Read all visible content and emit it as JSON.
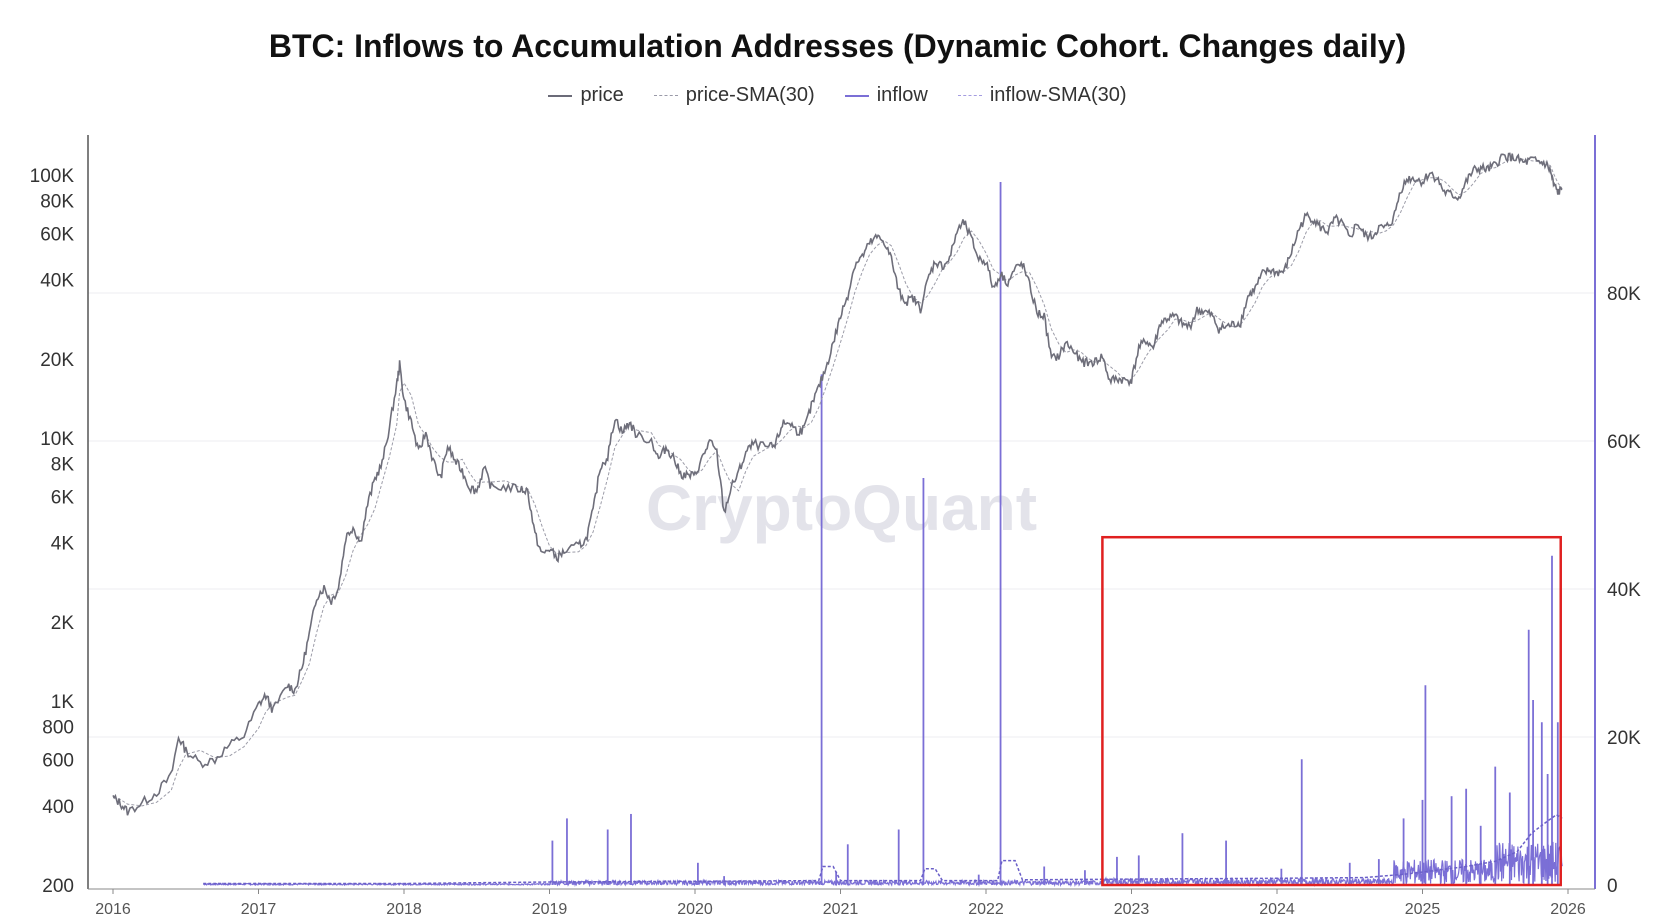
{
  "title": "BTC: Inflows to Accumulation Addresses (Dynamic Cohort. Changes daily)",
  "watermark": "CryptoQuant",
  "legend": [
    {
      "label": "price",
      "color": "#6b6b78",
      "dashed": false
    },
    {
      "label": "price-SMA(30)",
      "color": "#9a9aa8",
      "dashed": true
    },
    {
      "label": "inflow",
      "color": "#7b6fd6",
      "dashed": false
    },
    {
      "label": "inflow-SMA(30)",
      "color": "#a49ce0",
      "dashed": true
    }
  ],
  "colors": {
    "price": "#6e6e7a",
    "price_sma": "#9c9ca8",
    "inflow": "#7b6fd6",
    "inflow_sma": "#6a5fc8",
    "axis_right": "#7b6fd6",
    "highlight_box": "#e02020",
    "grid": "#ececf2"
  },
  "chart_data": {
    "type": "line",
    "x_axis": {
      "ticks": [
        "2016",
        "2017",
        "2018",
        "2019",
        "2020",
        "2021",
        "2022",
        "2023",
        "2024",
        "2025",
        "2026"
      ],
      "range": [
        2016.0,
        2026.0
      ]
    },
    "y_left": {
      "scale": "log",
      "range": [
        200,
        130000
      ],
      "ticks": [
        "100K",
        "80K",
        "60K",
        "40K",
        "20K",
        "10K",
        "8K",
        "6K",
        "4K",
        "2K",
        "1K",
        "800",
        "600",
        "400",
        "200"
      ],
      "tick_values": [
        100000,
        80000,
        60000,
        40000,
        20000,
        10000,
        8000,
        6000,
        4000,
        2000,
        1000,
        800,
        600,
        400,
        200
      ]
    },
    "y_right": {
      "scale": "linear",
      "range": [
        0,
        100000
      ],
      "ticks": [
        "80K",
        "60K",
        "40K",
        "20K",
        "0"
      ],
      "tick_values": [
        80000,
        60000,
        40000,
        20000,
        0
      ]
    },
    "price_series": {
      "name": "price",
      "points": [
        [
          2016.0,
          430
        ],
        [
          2016.05,
          410
        ],
        [
          2016.1,
          380
        ],
        [
          2016.2,
          410
        ],
        [
          2016.3,
          450
        ],
        [
          2016.4,
          520
        ],
        [
          2016.45,
          730
        ],
        [
          2016.5,
          650
        ],
        [
          2016.6,
          580
        ],
        [
          2016.7,
          600
        ],
        [
          2016.8,
          680
        ],
        [
          2016.9,
          740
        ],
        [
          2017.0,
          970
        ],
        [
          2017.05,
          1050
        ],
        [
          2017.1,
          920
        ],
        [
          2017.2,
          1150
        ],
        [
          2017.25,
          1100
        ],
        [
          2017.3,
          1350
        ],
        [
          2017.35,
          1800
        ],
        [
          2017.4,
          2500
        ],
        [
          2017.45,
          2700
        ],
        [
          2017.5,
          2400
        ],
        [
          2017.55,
          2700
        ],
        [
          2017.6,
          4200
        ],
        [
          2017.65,
          4600
        ],
        [
          2017.7,
          4000
        ],
        [
          2017.75,
          5600
        ],
        [
          2017.8,
          7000
        ],
        [
          2017.85,
          8000
        ],
        [
          2017.9,
          11000
        ],
        [
          2017.95,
          16000
        ],
        [
          2017.97,
          19000
        ],
        [
          2018.0,
          14000
        ],
        [
          2018.05,
          11500
        ],
        [
          2018.1,
          8800
        ],
        [
          2018.15,
          10500
        ],
        [
          2018.2,
          8200
        ],
        [
          2018.25,
          7000
        ],
        [
          2018.3,
          9300
        ],
        [
          2018.35,
          8200
        ],
        [
          2018.4,
          7500
        ],
        [
          2018.45,
          6500
        ],
        [
          2018.5,
          6300
        ],
        [
          2018.55,
          7700
        ],
        [
          2018.6,
          6500
        ],
        [
          2018.7,
          6500
        ],
        [
          2018.8,
          6400
        ],
        [
          2018.85,
          6300
        ],
        [
          2018.9,
          4300
        ],
        [
          2018.95,
          3600
        ],
        [
          2019.0,
          3800
        ],
        [
          2019.05,
          3500
        ],
        [
          2019.1,
          3700
        ],
        [
          2019.2,
          3900
        ],
        [
          2019.25,
          4100
        ],
        [
          2019.3,
          5300
        ],
        [
          2019.35,
          7800
        ],
        [
          2019.4,
          8500
        ],
        [
          2019.45,
          12000
        ],
        [
          2019.5,
          10500
        ],
        [
          2019.55,
          11500
        ],
        [
          2019.6,
          10200
        ],
        [
          2019.7,
          9800
        ],
        [
          2019.75,
          8300
        ],
        [
          2019.8,
          9200
        ],
        [
          2019.85,
          8500
        ],
        [
          2019.9,
          7300
        ],
        [
          2019.95,
          7200
        ],
        [
          2020.0,
          7200
        ],
        [
          2020.05,
          8400
        ],
        [
          2020.1,
          9700
        ],
        [
          2020.15,
          8800
        ],
        [
          2020.2,
          5200
        ],
        [
          2020.25,
          6500
        ],
        [
          2020.3,
          7400
        ],
        [
          2020.35,
          8800
        ],
        [
          2020.4,
          9500
        ],
        [
          2020.5,
          9200
        ],
        [
          2020.55,
          9300
        ],
        [
          2020.6,
          11300
        ],
        [
          2020.65,
          11500
        ],
        [
          2020.7,
          10600
        ],
        [
          2020.75,
          10800
        ],
        [
          2020.8,
          13200
        ],
        [
          2020.85,
          15600
        ],
        [
          2020.9,
          18500
        ],
        [
          2020.95,
          23000
        ],
        [
          2021.0,
          29000
        ],
        [
          2021.05,
          35000
        ],
        [
          2021.1,
          46000
        ],
        [
          2021.15,
          49000
        ],
        [
          2021.2,
          55000
        ],
        [
          2021.25,
          58000
        ],
        [
          2021.3,
          56000
        ],
        [
          2021.35,
          48000
        ],
        [
          2021.4,
          36000
        ],
        [
          2021.45,
          33000
        ],
        [
          2021.5,
          34000
        ],
        [
          2021.55,
          31000
        ],
        [
          2021.6,
          40000
        ],
        [
          2021.65,
          47000
        ],
        [
          2021.7,
          45000
        ],
        [
          2021.75,
          48000
        ],
        [
          2021.8,
          61000
        ],
        [
          2021.85,
          66000
        ],
        [
          2021.9,
          57000
        ],
        [
          2021.95,
          48000
        ],
        [
          2022.0,
          47000
        ],
        [
          2022.05,
          37000
        ],
        [
          2022.1,
          42000
        ],
        [
          2022.15,
          39000
        ],
        [
          2022.2,
          44000
        ],
        [
          2022.25,
          46000
        ],
        [
          2022.3,
          38000
        ],
        [
          2022.35,
          30000
        ],
        [
          2022.4,
          29000
        ],
        [
          2022.45,
          20000
        ],
        [
          2022.5,
          20500
        ],
        [
          2022.55,
          23000
        ],
        [
          2022.6,
          21500
        ],
        [
          2022.65,
          19500
        ],
        [
          2022.7,
          19300
        ],
        [
          2022.75,
          19500
        ],
        [
          2022.8,
          20500
        ],
        [
          2022.85,
          16500
        ],
        [
          2022.9,
          16800
        ],
        [
          2022.95,
          16600
        ],
        [
          2023.0,
          16600
        ],
        [
          2023.05,
          22000
        ],
        [
          2023.1,
          23500
        ],
        [
          2023.15,
          22000
        ],
        [
          2023.2,
          27500
        ],
        [
          2023.25,
          28500
        ],
        [
          2023.3,
          29000
        ],
        [
          2023.35,
          27000
        ],
        [
          2023.4,
          26500
        ],
        [
          2023.45,
          30500
        ],
        [
          2023.5,
          30300
        ],
        [
          2023.55,
          29300
        ],
        [
          2023.6,
          26000
        ],
        [
          2023.65,
          26500
        ],
        [
          2023.7,
          27000
        ],
        [
          2023.75,
          27500
        ],
        [
          2023.8,
          34500
        ],
        [
          2023.85,
          37000
        ],
        [
          2023.9,
          42000
        ],
        [
          2023.95,
          43500
        ],
        [
          2024.0,
          42500
        ],
        [
          2024.05,
          43000
        ],
        [
          2024.1,
          51000
        ],
        [
          2024.15,
          62000
        ],
        [
          2024.2,
          70000
        ],
        [
          2024.25,
          68000
        ],
        [
          2024.3,
          63000
        ],
        [
          2024.35,
          61000
        ],
        [
          2024.4,
          68000
        ],
        [
          2024.45,
          65000
        ],
        [
          2024.5,
          57000
        ],
        [
          2024.55,
          66000
        ],
        [
          2024.6,
          59000
        ],
        [
          2024.65,
          58000
        ],
        [
          2024.7,
          63000
        ],
        [
          2024.75,
          63000
        ],
        [
          2024.8,
          68000
        ],
        [
          2024.85,
          88000
        ],
        [
          2024.9,
          97000
        ],
        [
          2024.95,
          97000
        ],
        [
          2025.0,
          94000
        ],
        [
          2025.05,
          102000
        ],
        [
          2025.1,
          97000
        ],
        [
          2025.15,
          86000
        ],
        [
          2025.2,
          84000
        ],
        [
          2025.25,
          82000
        ],
        [
          2025.3,
          94000
        ],
        [
          2025.35,
          104000
        ],
        [
          2025.4,
          106000
        ],
        [
          2025.45,
          105000
        ],
        [
          2025.5,
          109000
        ],
        [
          2025.55,
          118000
        ],
        [
          2025.6,
          117000
        ],
        [
          2025.65,
          115000
        ],
        [
          2025.7,
          111000
        ],
        [
          2025.75,
          114000
        ],
        [
          2025.8,
          112000
        ],
        [
          2025.85,
          110000
        ],
        [
          2025.88,
          103000
        ],
        [
          2025.9,
          92000
        ],
        [
          2025.93,
          86000
        ],
        [
          2025.96,
          88000
        ]
      ]
    },
    "inflow_series": {
      "name": "inflow",
      "baseline_start": 2016.62,
      "spikes": [
        [
          2019.02,
          6000
        ],
        [
          2019.12,
          9000
        ],
        [
          2019.4,
          7500
        ],
        [
          2019.56,
          9600
        ],
        [
          2020.02,
          3000
        ],
        [
          2020.2,
          1200
        ],
        [
          2020.87,
          69000
        ],
        [
          2020.97,
          1800
        ],
        [
          2021.05,
          5500
        ],
        [
          2021.4,
          7500
        ],
        [
          2021.57,
          55000
        ],
        [
          2021.95,
          1400
        ],
        [
          2022.1,
          95000
        ],
        [
          2022.4,
          2500
        ],
        [
          2022.68,
          2000
        ],
        [
          2022.9,
          3800
        ],
        [
          2023.05,
          4000
        ],
        [
          2023.35,
          7000
        ],
        [
          2023.65,
          6000
        ],
        [
          2024.03,
          2200
        ],
        [
          2024.17,
          17000
        ],
        [
          2024.5,
          3000
        ],
        [
          2024.7,
          3500
        ],
        [
          2024.87,
          9000
        ],
        [
          2025.0,
          11500
        ],
        [
          2025.02,
          27000
        ],
        [
          2025.2,
          12000
        ],
        [
          2025.3,
          13000
        ],
        [
          2025.4,
          8000
        ],
        [
          2025.5,
          16000
        ],
        [
          2025.6,
          12500
        ],
        [
          2025.73,
          34500
        ],
        [
          2025.76,
          25000
        ],
        [
          2025.82,
          22000
        ],
        [
          2025.86,
          15000
        ],
        [
          2025.89,
          44500
        ],
        [
          2025.93,
          22000
        ],
        [
          2025.95,
          9000
        ]
      ]
    },
    "inflow_sma_series": {
      "name": "inflow-SMA(30)",
      "points": [
        [
          2016.62,
          200
        ],
        [
          2018.0,
          200
        ],
        [
          2019.0,
          400
        ],
        [
          2020.0,
          500
        ],
        [
          2020.85,
          600
        ],
        [
          2020.88,
          2500
        ],
        [
          2020.95,
          2500
        ],
        [
          2021.0,
          600
        ],
        [
          2021.55,
          600
        ],
        [
          2021.58,
          2200
        ],
        [
          2021.65,
          2200
        ],
        [
          2021.7,
          600
        ],
        [
          2022.08,
          600
        ],
        [
          2022.11,
          3300
        ],
        [
          2022.2,
          3300
        ],
        [
          2022.25,
          700
        ],
        [
          2023.0,
          800
        ],
        [
          2024.0,
          900
        ],
        [
          2024.6,
          1000
        ],
        [
          2024.9,
          1500
        ],
        [
          2025.1,
          2000
        ],
        [
          2025.3,
          2500
        ],
        [
          2025.5,
          3200
        ],
        [
          2025.65,
          4500
        ],
        [
          2025.75,
          7000
        ],
        [
          2025.85,
          8500
        ],
        [
          2025.92,
          9500
        ],
        [
          2025.96,
          9000
        ]
      ]
    },
    "highlight_box": {
      "x_range": [
        2022.8,
        2025.95
      ],
      "y_right_top": 47000,
      "y_right_bottom": 0
    }
  }
}
